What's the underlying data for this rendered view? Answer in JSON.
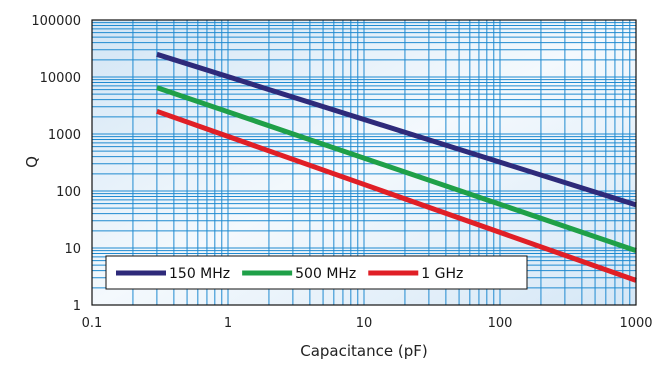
{
  "chart_data": {
    "type": "line",
    "title": "",
    "xlabel": "Capacitance (pF)",
    "ylabel": "Q",
    "x_scale": "log",
    "y_scale": "log",
    "xlim": [
      0.1,
      1000
    ],
    "ylim": [
      1,
      100000
    ],
    "grid": true,
    "legend_position": "bottom-left",
    "x_tick_labels": [
      "0.1",
      "1",
      "10",
      "100",
      "1000"
    ],
    "y_tick_labels": [
      "1",
      "10",
      "100",
      "1000",
      "10000",
      "100000"
    ],
    "series": [
      {
        "name": "150 MHz",
        "color": "#2e2a7a",
        "x": [
          0.3,
          1000
        ],
        "y": [
          25000,
          57
        ]
      },
      {
        "name": "500 MHz",
        "color": "#1fa048",
        "x": [
          0.3,
          1000
        ],
        "y": [
          6500,
          9
        ]
      },
      {
        "name": "1 GHz",
        "color": "#e01f26",
        "x": [
          0.3,
          1000
        ],
        "y": [
          2500,
          2.7
        ]
      }
    ]
  },
  "colors": {
    "grid": "#1f8ad0",
    "plot_background": "#e3eff9",
    "frame": "#111111"
  }
}
